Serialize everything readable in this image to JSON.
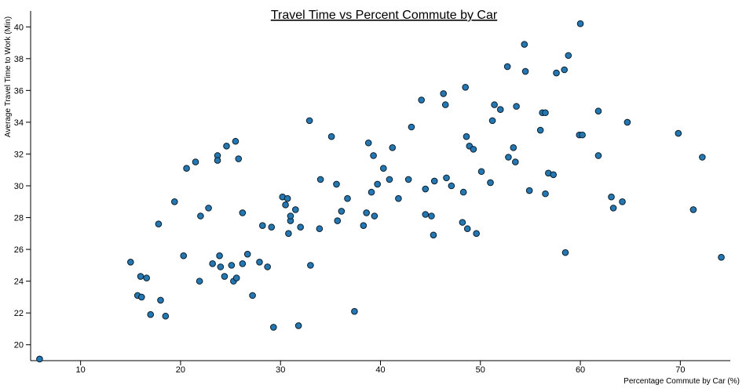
{
  "chart_data": {
    "type": "scatter",
    "title": "Travel Time vs Percent Commute by Car",
    "xlabel": "Percentage Commute by Car (%)",
    "ylabel": "Average Travel Time to Work (Min)",
    "xlim": [
      5,
      75
    ],
    "ylim": [
      19,
      41
    ],
    "xticks": [
      10,
      20,
      30,
      40,
      50,
      60,
      70
    ],
    "yticks": [
      20,
      22,
      24,
      26,
      28,
      30,
      32,
      34,
      36,
      38,
      40
    ],
    "grid": false,
    "point_color": "#2577b2",
    "points": [
      {
        "x": 5.9,
        "y": 19.1
      },
      {
        "x": 15.0,
        "y": 25.2
      },
      {
        "x": 15.7,
        "y": 23.1
      },
      {
        "x": 16.0,
        "y": 24.3
      },
      {
        "x": 16.1,
        "y": 23.0
      },
      {
        "x": 16.6,
        "y": 24.2
      },
      {
        "x": 17.0,
        "y": 21.9
      },
      {
        "x": 17.8,
        "y": 27.6
      },
      {
        "x": 18.0,
        "y": 22.8
      },
      {
        "x": 18.5,
        "y": 21.8
      },
      {
        "x": 19.4,
        "y": 29.0
      },
      {
        "x": 20.3,
        "y": 25.6
      },
      {
        "x": 20.6,
        "y": 31.1
      },
      {
        "x": 21.5,
        "y": 31.5
      },
      {
        "x": 21.9,
        "y": 24.0
      },
      {
        "x": 22.0,
        "y": 28.1
      },
      {
        "x": 22.8,
        "y": 28.6
      },
      {
        "x": 23.2,
        "y": 25.1
      },
      {
        "x": 23.7,
        "y": 31.9
      },
      {
        "x": 23.7,
        "y": 31.6
      },
      {
        "x": 23.9,
        "y": 25.6
      },
      {
        "x": 24.0,
        "y": 24.9
      },
      {
        "x": 24.4,
        "y": 24.3
      },
      {
        "x": 24.6,
        "y": 32.5
      },
      {
        "x": 25.1,
        "y": 25.0
      },
      {
        "x": 25.3,
        "y": 24.0
      },
      {
        "x": 25.5,
        "y": 32.8
      },
      {
        "x": 25.6,
        "y": 24.2
      },
      {
        "x": 25.8,
        "y": 31.7
      },
      {
        "x": 26.2,
        "y": 28.3
      },
      {
        "x": 26.2,
        "y": 25.1
      },
      {
        "x": 26.7,
        "y": 25.7
      },
      {
        "x": 27.2,
        "y": 23.1
      },
      {
        "x": 27.9,
        "y": 25.2
      },
      {
        "x": 28.2,
        "y": 27.5
      },
      {
        "x": 28.7,
        "y": 24.9
      },
      {
        "x": 29.1,
        "y": 27.4
      },
      {
        "x": 29.3,
        "y": 21.1
      },
      {
        "x": 30.2,
        "y": 29.3
      },
      {
        "x": 30.5,
        "y": 28.8
      },
      {
        "x": 30.7,
        "y": 29.2
      },
      {
        "x": 30.8,
        "y": 27.0
      },
      {
        "x": 31.0,
        "y": 27.8
      },
      {
        "x": 31.0,
        "y": 28.1
      },
      {
        "x": 31.5,
        "y": 28.5
      },
      {
        "x": 31.8,
        "y": 21.2
      },
      {
        "x": 32.0,
        "y": 27.4
      },
      {
        "x": 32.9,
        "y": 34.1
      },
      {
        "x": 33.0,
        "y": 25.0
      },
      {
        "x": 33.9,
        "y": 27.3
      },
      {
        "x": 34.0,
        "y": 30.4
      },
      {
        "x": 35.1,
        "y": 33.1
      },
      {
        "x": 35.6,
        "y": 30.1
      },
      {
        "x": 35.7,
        "y": 27.8
      },
      {
        "x": 36.1,
        "y": 28.4
      },
      {
        "x": 36.7,
        "y": 29.2
      },
      {
        "x": 37.4,
        "y": 22.1
      },
      {
        "x": 38.3,
        "y": 27.5
      },
      {
        "x": 38.6,
        "y": 28.3
      },
      {
        "x": 38.8,
        "y": 32.7
      },
      {
        "x": 39.1,
        "y": 29.6
      },
      {
        "x": 39.3,
        "y": 31.9
      },
      {
        "x": 39.4,
        "y": 28.1
      },
      {
        "x": 39.7,
        "y": 30.1
      },
      {
        "x": 40.3,
        "y": 31.1
      },
      {
        "x": 40.9,
        "y": 30.4
      },
      {
        "x": 41.2,
        "y": 32.4
      },
      {
        "x": 41.8,
        "y": 29.2
      },
      {
        "x": 42.8,
        "y": 30.4
      },
      {
        "x": 43.1,
        "y": 33.7
      },
      {
        "x": 44.1,
        "y": 35.4
      },
      {
        "x": 44.5,
        "y": 28.2
      },
      {
        "x": 44.5,
        "y": 29.8
      },
      {
        "x": 45.1,
        "y": 28.1
      },
      {
        "x": 45.3,
        "y": 26.9
      },
      {
        "x": 45.4,
        "y": 30.3
      },
      {
        "x": 46.3,
        "y": 35.8
      },
      {
        "x": 46.5,
        "y": 35.1
      },
      {
        "x": 46.6,
        "y": 30.5
      },
      {
        "x": 47.1,
        "y": 30.0
      },
      {
        "x": 48.2,
        "y": 27.7
      },
      {
        "x": 48.3,
        "y": 29.6
      },
      {
        "x": 48.5,
        "y": 36.2
      },
      {
        "x": 48.6,
        "y": 33.1
      },
      {
        "x": 48.7,
        "y": 27.3
      },
      {
        "x": 48.9,
        "y": 32.5
      },
      {
        "x": 49.3,
        "y": 32.3
      },
      {
        "x": 49.6,
        "y": 27.0
      },
      {
        "x": 50.1,
        "y": 30.9
      },
      {
        "x": 51.0,
        "y": 30.2
      },
      {
        "x": 51.2,
        "y": 34.1
      },
      {
        "x": 51.4,
        "y": 35.1
      },
      {
        "x": 52.0,
        "y": 34.8
      },
      {
        "x": 52.7,
        "y": 37.5
      },
      {
        "x": 52.8,
        "y": 31.8
      },
      {
        "x": 53.3,
        "y": 32.4
      },
      {
        "x": 53.5,
        "y": 31.5
      },
      {
        "x": 53.6,
        "y": 35.0
      },
      {
        "x": 54.4,
        "y": 38.9
      },
      {
        "x": 54.5,
        "y": 37.2
      },
      {
        "x": 54.9,
        "y": 29.7
      },
      {
        "x": 56.0,
        "y": 33.5
      },
      {
        "x": 56.2,
        "y": 34.6
      },
      {
        "x": 56.5,
        "y": 34.6
      },
      {
        "x": 56.5,
        "y": 29.5
      },
      {
        "x": 56.8,
        "y": 30.8
      },
      {
        "x": 57.3,
        "y": 30.7
      },
      {
        "x": 57.6,
        "y": 37.1
      },
      {
        "x": 58.4,
        "y": 37.3
      },
      {
        "x": 58.5,
        "y": 25.8
      },
      {
        "x": 58.8,
        "y": 38.2
      },
      {
        "x": 59.9,
        "y": 33.2
      },
      {
        "x": 60.0,
        "y": 40.2
      },
      {
        "x": 60.2,
        "y": 33.2
      },
      {
        "x": 61.8,
        "y": 34.7
      },
      {
        "x": 61.8,
        "y": 31.9
      },
      {
        "x": 63.1,
        "y": 29.3
      },
      {
        "x": 63.3,
        "y": 28.6
      },
      {
        "x": 64.2,
        "y": 29.0
      },
      {
        "x": 64.7,
        "y": 34.0
      },
      {
        "x": 69.8,
        "y": 33.3
      },
      {
        "x": 71.3,
        "y": 28.5
      },
      {
        "x": 72.2,
        "y": 31.8
      },
      {
        "x": 74.1,
        "y": 25.5
      }
    ]
  }
}
